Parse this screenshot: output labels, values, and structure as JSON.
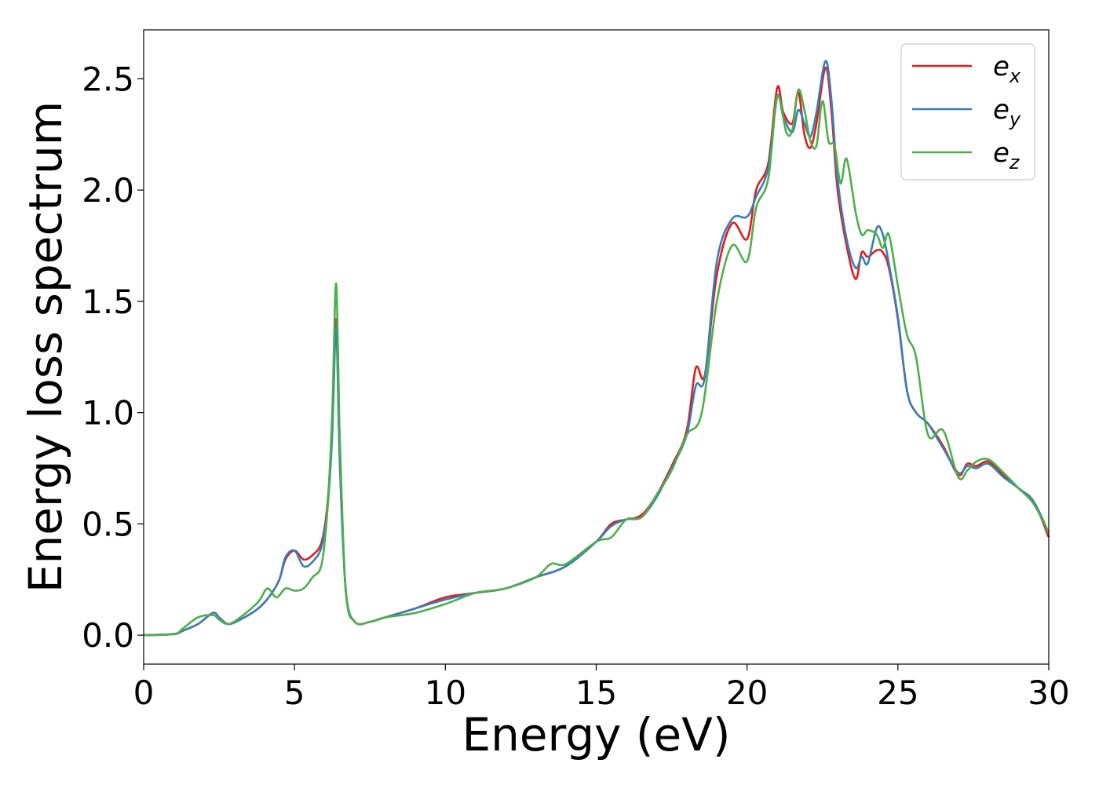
{
  "chart_data": {
    "type": "line",
    "xlabel": "Energy (eV)",
    "ylabel": "Energy loss spectrum",
    "xlim": [
      0,
      30
    ],
    "ylim": [
      -0.13,
      2.72
    ],
    "xticks": [
      "0",
      "5",
      "10",
      "15",
      "20",
      "25",
      "30"
    ],
    "yticks": [
      "0.0",
      "0.5",
      "1.0",
      "1.5",
      "2.0",
      "2.5"
    ],
    "grid": false,
    "legend_position": "top-right",
    "series": [
      {
        "name": "e_x",
        "label_main": "e",
        "label_sub": "x",
        "color": "#e41a1c",
        "x": [
          0,
          1,
          1.3,
          1.8,
          2.3,
          2.5,
          2.8,
          3.2,
          3.8,
          4.2,
          4.5,
          4.7,
          5.0,
          5.3,
          5.6,
          5.9,
          6.1,
          6.25,
          6.38,
          6.5,
          6.7,
          7.0,
          7.5,
          8.0,
          9.0,
          10.0,
          11.0,
          12.0,
          13.0,
          14.0,
          15.0,
          15.5,
          16.0,
          16.5,
          17.0,
          17.5,
          18.0,
          18.3,
          18.6,
          19.0,
          19.5,
          20.0,
          20.3,
          20.7,
          21.0,
          21.2,
          21.5,
          21.7,
          21.9,
          22.1,
          22.3,
          22.6,
          22.8,
          23.0,
          23.3,
          23.6,
          23.8,
          24.0,
          24.3,
          24.5,
          24.7,
          25.0,
          25.3,
          25.6,
          26.0,
          26.5,
          27.0,
          27.3,
          27.6,
          28.0,
          28.5,
          29.0,
          29.5,
          30.0
        ],
        "y": [
          0,
          0.005,
          0.02,
          0.05,
          0.1,
          0.08,
          0.05,
          0.07,
          0.12,
          0.18,
          0.25,
          0.34,
          0.38,
          0.34,
          0.36,
          0.42,
          0.6,
          0.95,
          1.42,
          0.8,
          0.2,
          0.06,
          0.06,
          0.08,
          0.12,
          0.17,
          0.19,
          0.21,
          0.26,
          0.31,
          0.42,
          0.5,
          0.52,
          0.54,
          0.63,
          0.76,
          0.92,
          1.2,
          1.17,
          1.62,
          1.85,
          1.78,
          2.0,
          2.12,
          2.46,
          2.35,
          2.3,
          2.44,
          2.25,
          2.19,
          2.3,
          2.55,
          2.35,
          2.0,
          1.75,
          1.6,
          1.72,
          1.7,
          1.73,
          1.72,
          1.65,
          1.42,
          1.1,
          1.0,
          0.95,
          0.85,
          0.72,
          0.77,
          0.76,
          0.78,
          0.72,
          0.66,
          0.6,
          0.44
        ]
      },
      {
        "name": "e_y",
        "label_main": "e",
        "label_sub": "y",
        "color": "#377eb8",
        "x": [
          0,
          1,
          1.3,
          1.8,
          2.3,
          2.5,
          2.8,
          3.2,
          3.8,
          4.2,
          4.5,
          4.7,
          5.0,
          5.3,
          5.6,
          5.9,
          6.1,
          6.25,
          6.38,
          6.5,
          6.7,
          7.0,
          7.5,
          8.0,
          9.0,
          10.0,
          11.0,
          12.0,
          13.0,
          14.0,
          15.0,
          15.5,
          16.0,
          16.5,
          17.0,
          17.5,
          18.0,
          18.3,
          18.6,
          19.0,
          19.5,
          20.0,
          20.3,
          20.7,
          21.0,
          21.2,
          21.5,
          21.7,
          21.9,
          22.1,
          22.3,
          22.6,
          22.8,
          23.0,
          23.3,
          23.6,
          23.8,
          24.0,
          24.3,
          24.5,
          24.7,
          25.0,
          25.3,
          25.6,
          26.0,
          26.5,
          27.0,
          27.3,
          27.6,
          28.0,
          28.5,
          29.0,
          29.5,
          30.0
        ],
        "y": [
          0,
          0.005,
          0.02,
          0.05,
          0.1,
          0.08,
          0.05,
          0.07,
          0.12,
          0.18,
          0.25,
          0.35,
          0.38,
          0.31,
          0.33,
          0.4,
          0.58,
          0.9,
          1.38,
          0.78,
          0.2,
          0.06,
          0.06,
          0.08,
          0.12,
          0.16,
          0.19,
          0.21,
          0.26,
          0.31,
          0.42,
          0.49,
          0.52,
          0.53,
          0.62,
          0.75,
          0.9,
          1.12,
          1.16,
          1.68,
          1.87,
          1.88,
          1.97,
          2.1,
          2.42,
          2.33,
          2.26,
          2.36,
          2.3,
          2.24,
          2.35,
          2.58,
          2.4,
          2.05,
          1.78,
          1.65,
          1.7,
          1.67,
          1.83,
          1.8,
          1.67,
          1.43,
          1.1,
          1.0,
          0.95,
          0.84,
          0.73,
          0.76,
          0.75,
          0.77,
          0.71,
          0.66,
          0.6,
          0.46
        ]
      },
      {
        "name": "e_z",
        "label_main": "e",
        "label_sub": "z",
        "color": "#4daf4a",
        "x": [
          0,
          1,
          1.3,
          1.8,
          2.3,
          2.5,
          2.8,
          3.2,
          3.8,
          4.1,
          4.4,
          4.7,
          5.0,
          5.3,
          5.6,
          5.9,
          6.1,
          6.25,
          6.38,
          6.5,
          6.7,
          7.0,
          7.5,
          8.0,
          9.0,
          10.0,
          11.0,
          12.0,
          13.0,
          13.5,
          14.0,
          15.0,
          15.5,
          16.0,
          16.5,
          17.0,
          17.5,
          18.0,
          18.5,
          19.0,
          19.5,
          20.0,
          20.3,
          20.7,
          21.0,
          21.3,
          21.5,
          21.7,
          21.9,
          22.1,
          22.3,
          22.5,
          22.7,
          22.9,
          23.1,
          23.3,
          23.6,
          23.8,
          24.0,
          24.3,
          24.5,
          24.7,
          25.0,
          25.3,
          25.6,
          26.0,
          26.5,
          27.0,
          27.3,
          27.6,
          28.0,
          28.5,
          29.0,
          29.5,
          30.0
        ],
        "y": [
          0,
          0.005,
          0.03,
          0.08,
          0.09,
          0.07,
          0.05,
          0.08,
          0.15,
          0.21,
          0.17,
          0.21,
          0.2,
          0.21,
          0.26,
          0.32,
          0.58,
          1.0,
          1.58,
          0.9,
          0.2,
          0.06,
          0.06,
          0.08,
          0.1,
          0.14,
          0.19,
          0.21,
          0.26,
          0.32,
          0.32,
          0.42,
          0.44,
          0.52,
          0.53,
          0.63,
          0.74,
          0.9,
          1.0,
          1.5,
          1.75,
          1.68,
          1.92,
          2.05,
          2.42,
          2.26,
          2.27,
          2.45,
          2.36,
          2.22,
          2.2,
          2.4,
          2.22,
          2.2,
          2.03,
          2.14,
          1.9,
          1.8,
          1.82,
          1.8,
          1.74,
          1.8,
          1.57,
          1.35,
          1.25,
          0.9,
          0.92,
          0.71,
          0.74,
          0.78,
          0.79,
          0.73,
          0.66,
          0.59,
          0.46
        ]
      }
    ]
  }
}
